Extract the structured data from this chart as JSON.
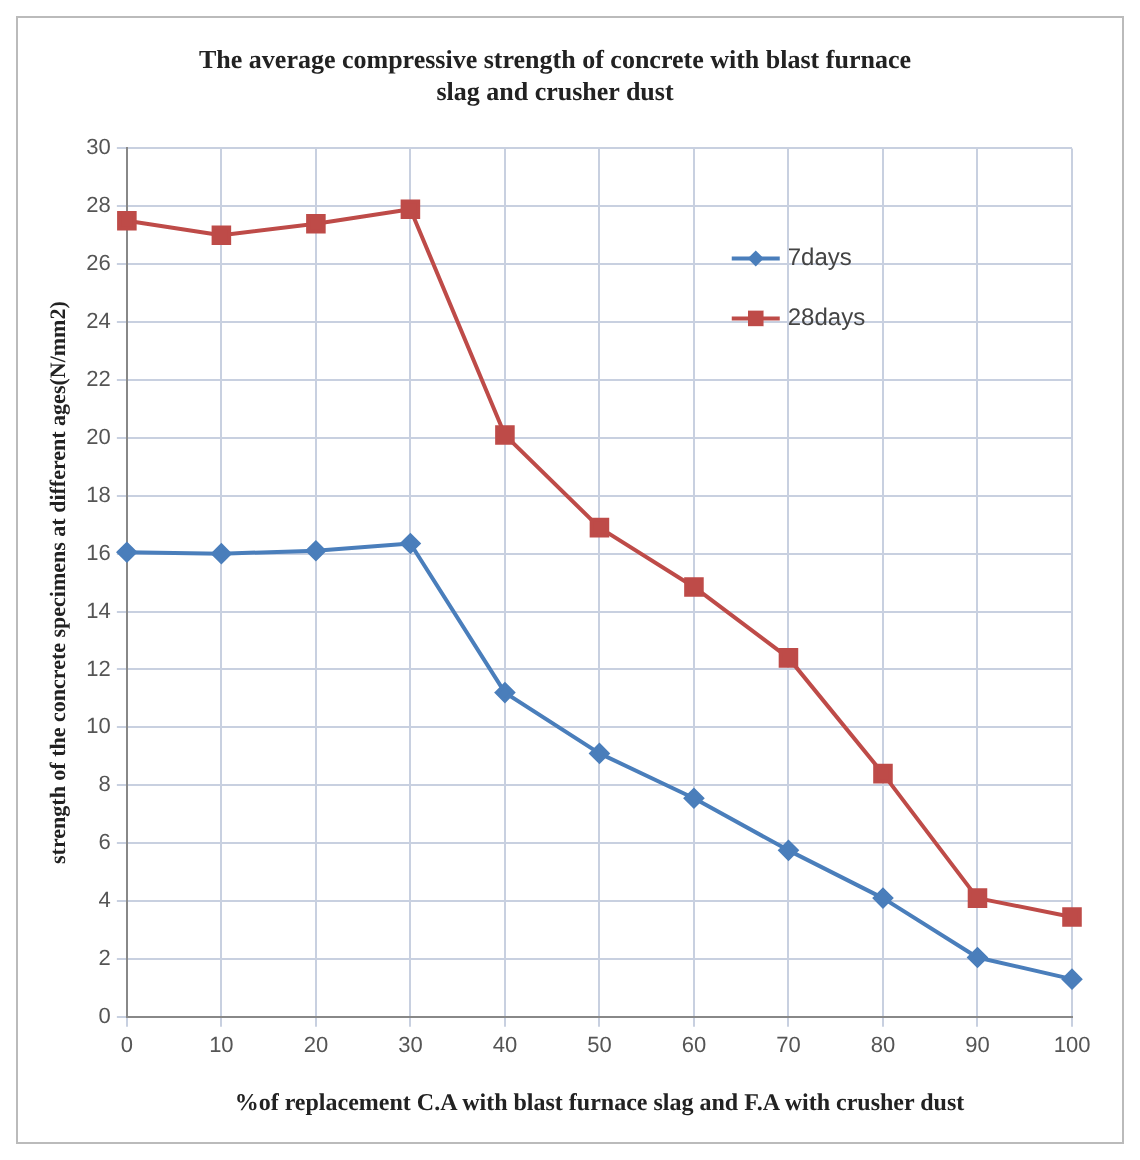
{
  "chart_data": {
    "type": "line",
    "title": "The average compressive strength of concrete with blast furnace slag and crusher dust",
    "xlabel": "%of replacement C.A with blast furnace slag and F.A with crusher dust",
    "ylabel": "strength of the concrete specimens at different ages(N/mm2)",
    "categories": [
      "0",
      "10",
      "20",
      "30",
      "40",
      "50",
      "60",
      "70",
      "80",
      "90",
      "100"
    ],
    "series": [
      {
        "name": "7days",
        "color": "#4a7ebb",
        "marker": "diamond",
        "values": [
          16.05,
          16.0,
          16.1,
          16.35,
          11.2,
          9.1,
          7.55,
          5.75,
          4.1,
          2.05,
          1.3
        ]
      },
      {
        "name": "28days",
        "color": "#be4b48",
        "marker": "square",
        "values": [
          27.5,
          27.0,
          27.4,
          27.9,
          20.1,
          16.9,
          14.85,
          12.4,
          8.4,
          4.1,
          3.45
        ]
      }
    ],
    "ylim": [
      0,
      30
    ],
    "yticks": [
      0,
      2,
      4,
      6,
      8,
      10,
      12,
      14,
      16,
      18,
      20,
      22,
      24,
      26,
      28,
      30
    ],
    "grid": true,
    "legend": "top right",
    "line_style": "solid"
  }
}
